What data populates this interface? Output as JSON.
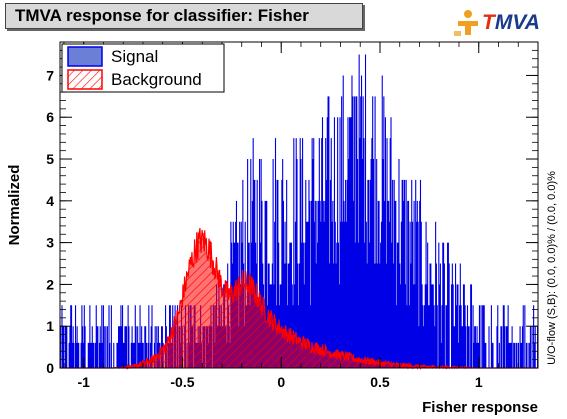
{
  "header": {
    "title": "TMVA response for classifier: Fisher",
    "logo_first": "T",
    "logo_rest": "MVA"
  },
  "side_note": "U/O-flow (S,B): (0.0, 0.0)% / (0.0, 0.0)%",
  "colors": {
    "signal": "#0000e6",
    "background": "#ff0000",
    "legend_signal_fill": "#6b7fd6"
  },
  "chart_data": {
    "type": "histogram",
    "xlabel": "Fisher response",
    "ylabel": "Normalized",
    "xlim": [
      -1.12,
      1.3
    ],
    "ylim": [
      0,
      7.8
    ],
    "x_ticks": [
      -1,
      -0.5,
      0,
      0.5,
      1
    ],
    "x_tick_labels": [
      "-1",
      "-0.5",
      "0",
      "0.5",
      "1"
    ],
    "y_ticks": [
      0,
      1,
      2,
      3,
      4,
      5,
      6,
      7
    ],
    "y_tick_labels": [
      "0",
      "1",
      "2",
      "3",
      "4",
      "5",
      "6",
      "7"
    ],
    "legend": {
      "position": "top-left",
      "entries": [
        {
          "name": "Signal",
          "style": "solid-fill"
        },
        {
          "name": "Background",
          "style": "hatched"
        }
      ]
    },
    "series": [
      {
        "name": "Signal",
        "envelope_x": [
          -1.12,
          -0.72,
          -0.5,
          -0.3,
          -0.22,
          -0.18,
          -0.15,
          -0.1,
          0.0,
          0.1,
          0.2,
          0.3,
          0.35,
          0.4,
          0.45,
          0.5,
          0.55,
          0.6,
          0.65,
          0.7,
          0.75,
          0.8,
          0.9,
          1.0,
          1.05,
          1.1,
          1.2,
          1.3
        ],
        "envelope_y": [
          0.6,
          0.6,
          0.6,
          1.1,
          2.5,
          3.0,
          3.4,
          3.5,
          3.5,
          3.6,
          4.0,
          4.6,
          5.0,
          5.2,
          5.0,
          4.6,
          4.2,
          3.5,
          3.0,
          2.6,
          2.2,
          1.8,
          1.2,
          0.8,
          0.6,
          0.6,
          0.6,
          0.6
        ],
        "peak_x": 0.38,
        "peak_y": 6.5
      },
      {
        "name": "Background",
        "envelope_x": [
          -1.12,
          -0.85,
          -0.75,
          -0.65,
          -0.58,
          -0.52,
          -0.47,
          -0.43,
          -0.4,
          -0.37,
          -0.34,
          -0.3,
          -0.27,
          -0.24,
          -0.2,
          -0.16,
          -0.12,
          -0.08,
          -0.03,
          0.02,
          0.1,
          0.2,
          0.3,
          0.4,
          0.5,
          0.6,
          0.7,
          0.8,
          1.0,
          1.3
        ],
        "envelope_y": [
          0.0,
          0.0,
          0.03,
          0.2,
          0.55,
          1.3,
          2.3,
          2.9,
          3.1,
          2.9,
          2.5,
          1.95,
          1.75,
          1.8,
          2.05,
          2.0,
          1.7,
          1.35,
          1.05,
          0.85,
          0.62,
          0.45,
          0.3,
          0.2,
          0.12,
          0.07,
          0.04,
          0.02,
          0.0,
          0.0
        ],
        "peak_x": -0.4,
        "peak_y": 3.3
      }
    ]
  }
}
